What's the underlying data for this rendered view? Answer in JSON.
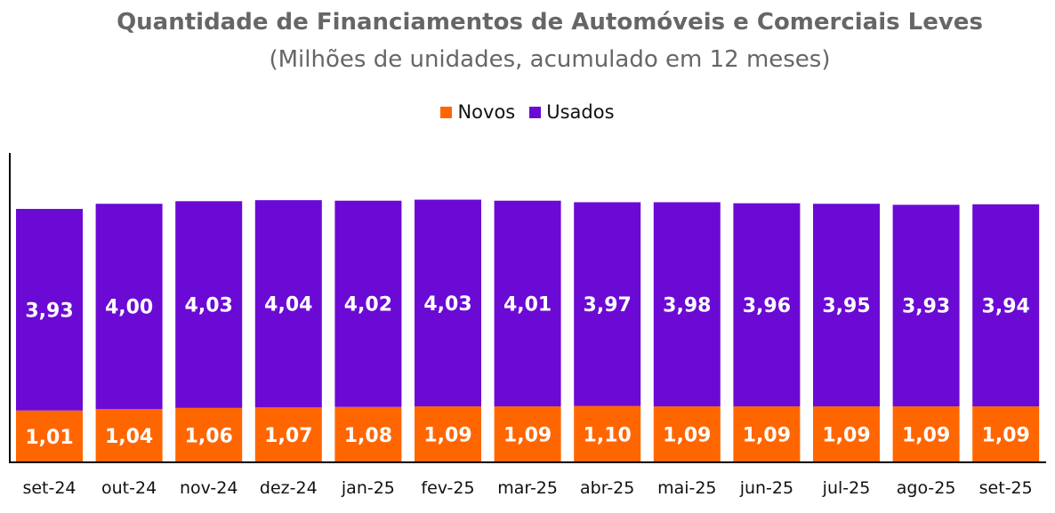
{
  "chart_data": {
    "type": "bar",
    "stacked": true,
    "title": "Quantidade de Financiamentos de Automóveis e Comerciais Leves",
    "subtitle": "(Milhões de unidades, acumulado em 12 meses)",
    "xlabel": "",
    "ylabel": "",
    "legend_position": "top",
    "categories": [
      "set-24",
      "out-24",
      "nov-24",
      "dez-24",
      "jan-25",
      "fev-25",
      "mar-25",
      "abr-25",
      "mai-25",
      "jun-25",
      "jul-25",
      "ago-25",
      "set-25"
    ],
    "series": [
      {
        "name": "Novos",
        "color": "#FF6600",
        "values": [
          1.01,
          1.04,
          1.06,
          1.07,
          1.08,
          1.09,
          1.09,
          1.1,
          1.09,
          1.09,
          1.09,
          1.09,
          1.09
        ],
        "labels": [
          "1,01",
          "1,04",
          "1,06",
          "1,07",
          "1,08",
          "1,09",
          "1,09",
          "1,10",
          "1,09",
          "1,09",
          "1,09",
          "1,09",
          "1,09"
        ]
      },
      {
        "name": "Usados",
        "color": "#6B0AD4",
        "values": [
          3.93,
          4.0,
          4.03,
          4.04,
          4.02,
          4.03,
          4.01,
          3.97,
          3.98,
          3.96,
          3.95,
          3.93,
          3.94
        ],
        "labels": [
          "3,93",
          "4,00",
          "4,03",
          "4,04",
          "4,02",
          "4,03",
          "4,01",
          "3,97",
          "3,98",
          "3,96",
          "3,95",
          "3,93",
          "3,94"
        ]
      }
    ],
    "ylim": [
      0,
      6
    ],
    "grid": false
  }
}
